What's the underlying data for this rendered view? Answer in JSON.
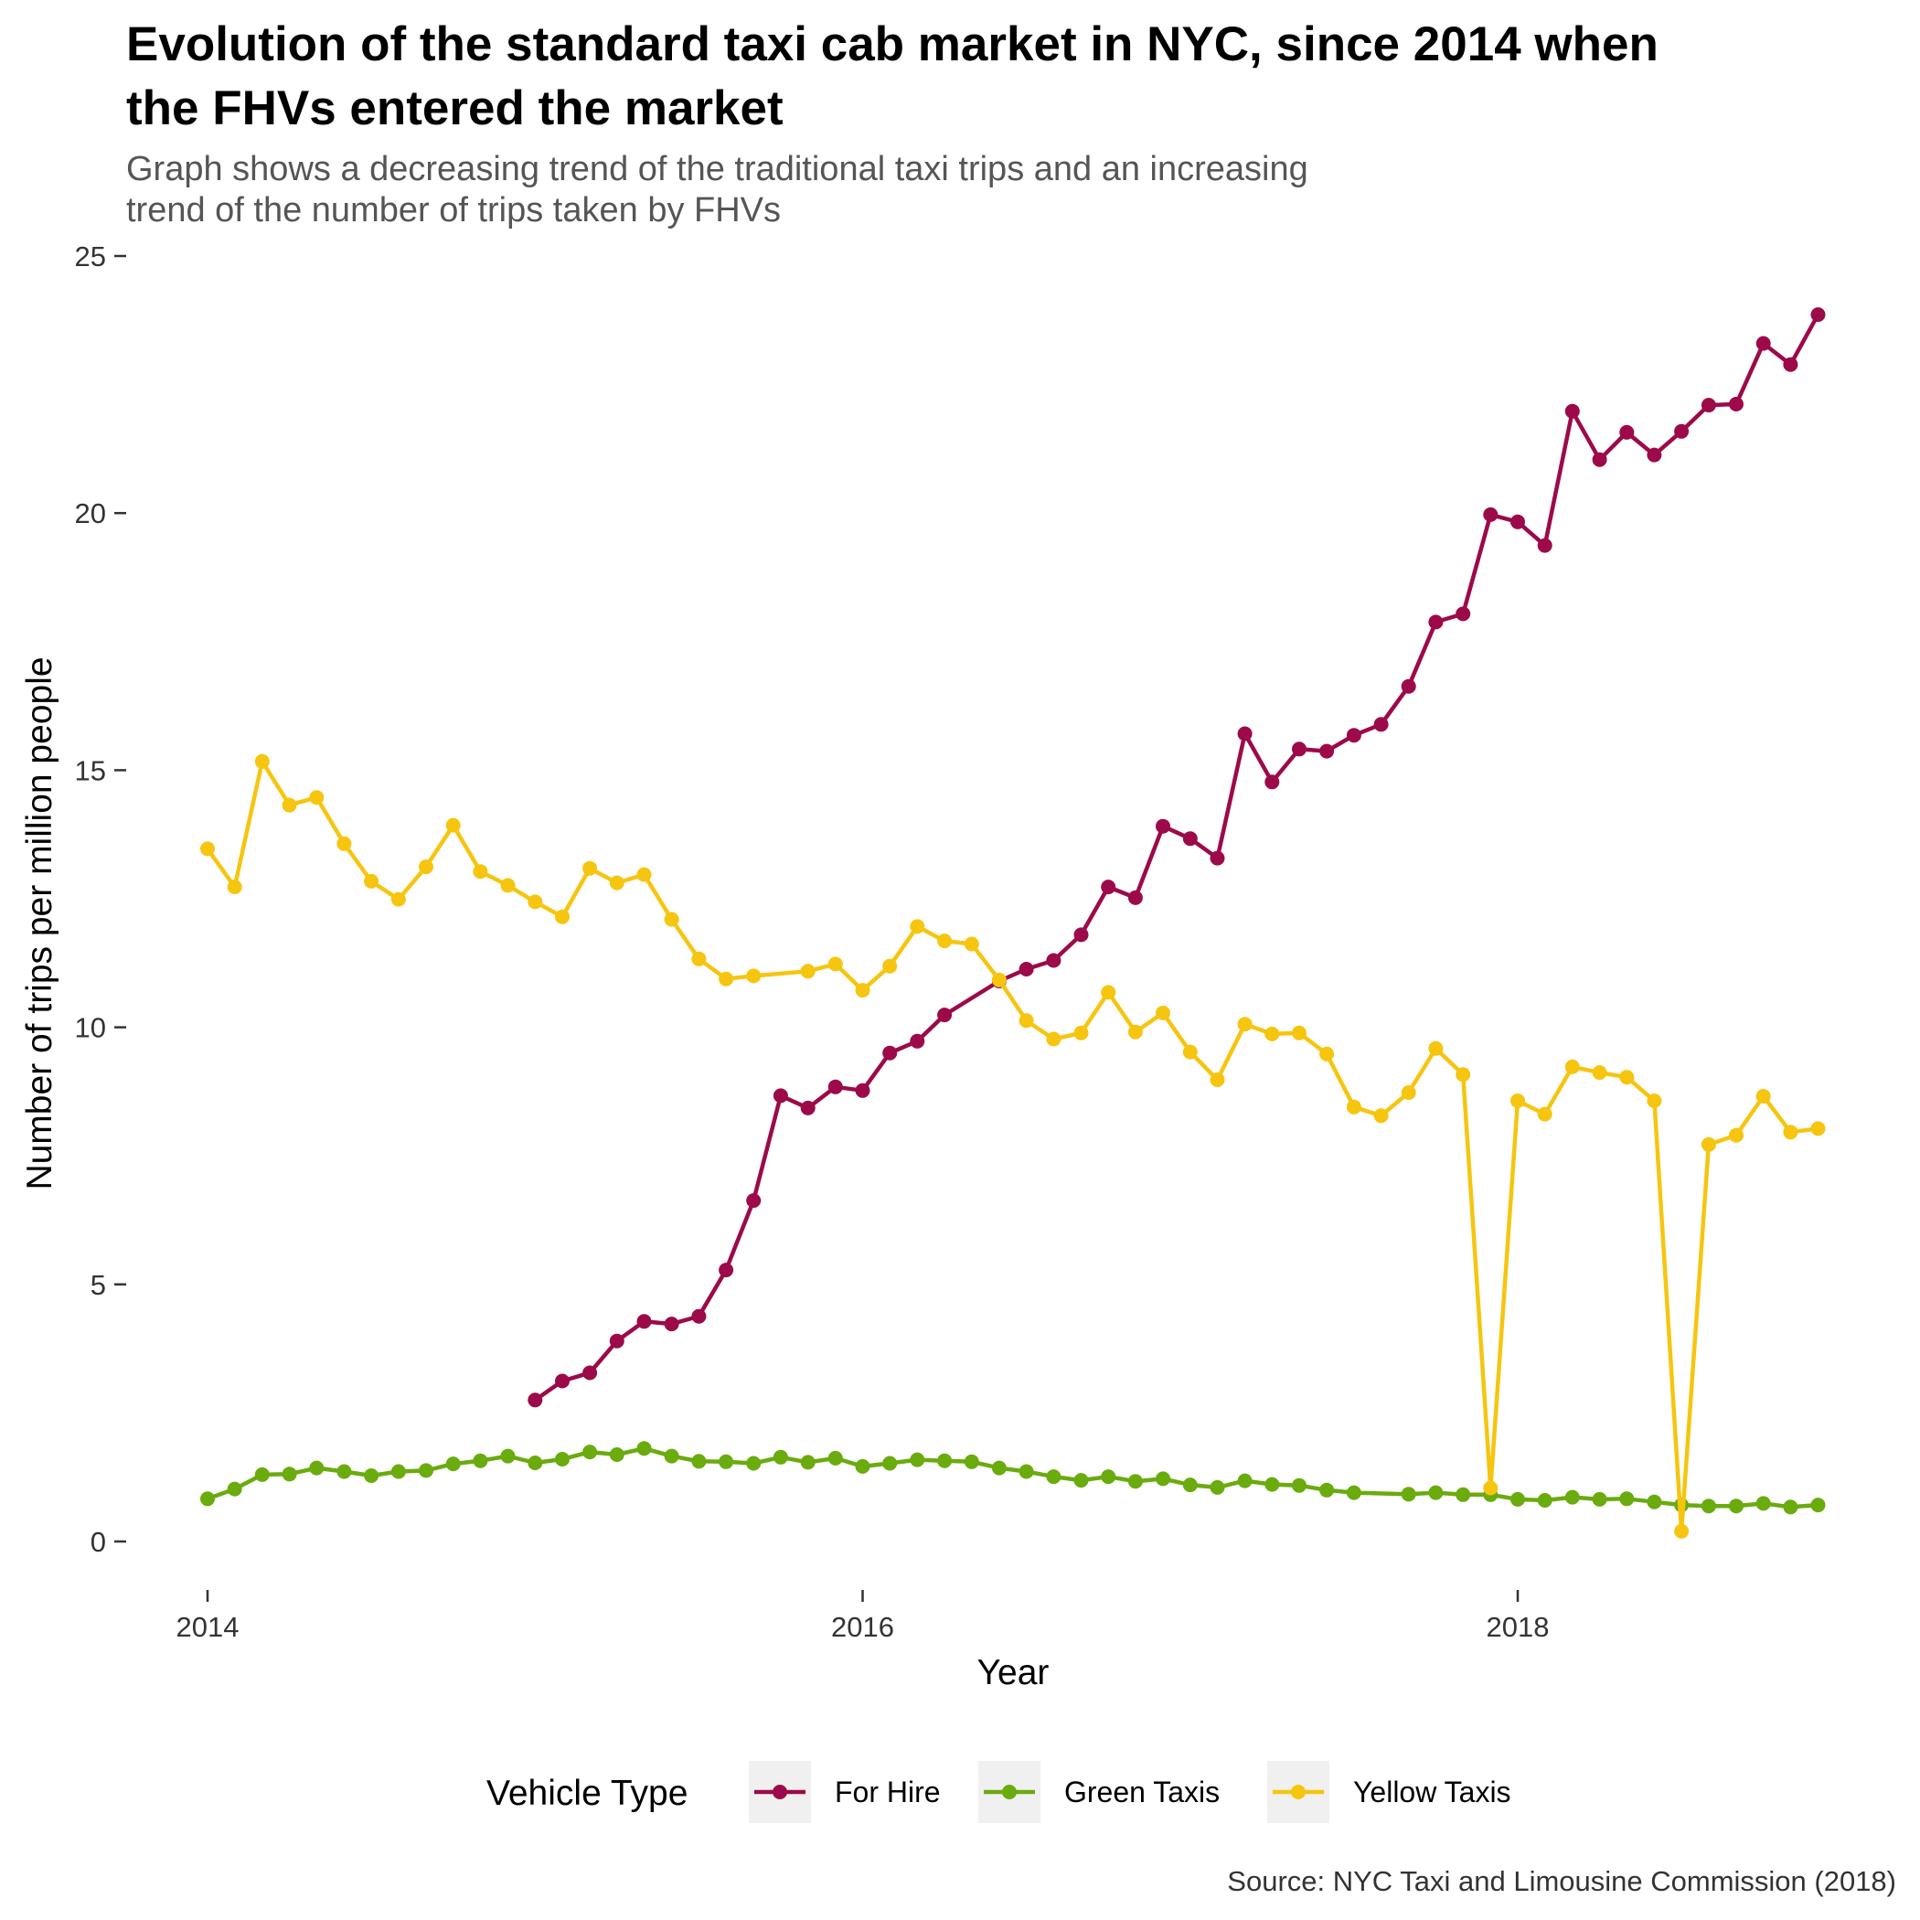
{
  "chart_data": {
    "type": "line",
    "title": "Evolution of the standard taxi cab market in NYC, since 2014 when the FHVs entered the market",
    "subtitle": "Graph shows a decreasing trend of the traditional taxi trips and an increasing trend of the number of trips taken by FHVs",
    "xlabel": "Year",
    "ylabel": "Number of trips per million people",
    "caption": "Source: NYC Taxi and Limousine Commission (2018)",
    "xlim": [
      2013.92,
      2019.08
    ],
    "ylim": [
      -0.8,
      25
    ],
    "x_ticks": [
      2014,
      2016,
      2018
    ],
    "y_ticks": [
      0,
      5,
      10,
      15,
      20,
      25
    ],
    "grid": false,
    "legend": {
      "title": "Vehicle Type",
      "position": "bottom"
    },
    "series": [
      {
        "name": "For Hire",
        "color": "#9C0A4A",
        "points": [
          [
            2015.0,
            2.75
          ],
          [
            2015.083,
            3.12
          ],
          [
            2015.167,
            3.28
          ],
          [
            2015.25,
            3.9
          ],
          [
            2015.333,
            4.28
          ],
          [
            2015.417,
            4.23
          ],
          [
            2015.5,
            4.38
          ],
          [
            2015.583,
            5.28
          ],
          [
            2015.667,
            6.63
          ],
          [
            2015.75,
            8.67
          ],
          [
            2015.833,
            8.43
          ],
          [
            2015.917,
            8.84
          ],
          [
            2016.0,
            8.77
          ],
          [
            2016.083,
            9.5
          ],
          [
            2016.167,
            9.73
          ],
          [
            2016.25,
            10.24
          ],
          [
            2016.417,
            10.9
          ],
          [
            2016.5,
            11.13
          ],
          [
            2016.583,
            11.3
          ],
          [
            2016.667,
            11.8
          ],
          [
            2016.75,
            12.73
          ],
          [
            2016.833,
            12.52
          ],
          [
            2016.917,
            13.91
          ],
          [
            2017.0,
            13.67
          ],
          [
            2017.083,
            13.29
          ],
          [
            2017.167,
            15.71
          ],
          [
            2017.25,
            14.77
          ],
          [
            2017.333,
            15.41
          ],
          [
            2017.417,
            15.37
          ],
          [
            2017.5,
            15.68
          ],
          [
            2017.583,
            15.89
          ],
          [
            2017.667,
            16.63
          ],
          [
            2017.75,
            17.88
          ],
          [
            2017.833,
            18.04
          ],
          [
            2017.917,
            19.97
          ],
          [
            2018.0,
            19.83
          ],
          [
            2018.083,
            19.37
          ],
          [
            2018.167,
            21.98
          ],
          [
            2018.25,
            21.04
          ],
          [
            2018.333,
            21.57
          ],
          [
            2018.417,
            21.13
          ],
          [
            2018.5,
            21.59
          ],
          [
            2018.583,
            22.1
          ],
          [
            2018.667,
            22.12
          ],
          [
            2018.75,
            23.3
          ],
          [
            2018.833,
            22.89
          ],
          [
            2018.917,
            23.86
          ]
        ]
      },
      {
        "name": "Green Taxis",
        "color": "#6AAB0E",
        "points": [
          [
            2014.0,
            0.83
          ],
          [
            2014.083,
            1.02
          ],
          [
            2014.167,
            1.3
          ],
          [
            2014.25,
            1.31
          ],
          [
            2014.333,
            1.43
          ],
          [
            2014.417,
            1.36
          ],
          [
            2014.5,
            1.28
          ],
          [
            2014.583,
            1.36
          ],
          [
            2014.667,
            1.38
          ],
          [
            2014.75,
            1.51
          ],
          [
            2014.833,
            1.57
          ],
          [
            2014.917,
            1.66
          ],
          [
            2015.0,
            1.53
          ],
          [
            2015.083,
            1.6
          ],
          [
            2015.167,
            1.74
          ],
          [
            2015.25,
            1.69
          ],
          [
            2015.333,
            1.81
          ],
          [
            2015.417,
            1.66
          ],
          [
            2015.5,
            1.56
          ],
          [
            2015.583,
            1.55
          ],
          [
            2015.667,
            1.52
          ],
          [
            2015.75,
            1.64
          ],
          [
            2015.833,
            1.54
          ],
          [
            2015.917,
            1.62
          ],
          [
            2016.0,
            1.46
          ],
          [
            2016.083,
            1.52
          ],
          [
            2016.167,
            1.59
          ],
          [
            2016.25,
            1.57
          ],
          [
            2016.333,
            1.55
          ],
          [
            2016.417,
            1.43
          ],
          [
            2016.5,
            1.36
          ],
          [
            2016.583,
            1.26
          ],
          [
            2016.667,
            1.19
          ],
          [
            2016.75,
            1.26
          ],
          [
            2016.833,
            1.17
          ],
          [
            2016.917,
            1.22
          ],
          [
            2017.0,
            1.1
          ],
          [
            2017.083,
            1.05
          ],
          [
            2017.167,
            1.18
          ],
          [
            2017.25,
            1.11
          ],
          [
            2017.333,
            1.09
          ],
          [
            2017.417,
            1.0
          ],
          [
            2017.5,
            0.95
          ],
          [
            2017.667,
            0.92
          ],
          [
            2017.75,
            0.95
          ],
          [
            2017.833,
            0.91
          ],
          [
            2017.917,
            0.91
          ],
          [
            2018.0,
            0.82
          ],
          [
            2018.083,
            0.8
          ],
          [
            2018.167,
            0.86
          ],
          [
            2018.25,
            0.82
          ],
          [
            2018.333,
            0.83
          ],
          [
            2018.417,
            0.77
          ],
          [
            2018.5,
            0.71
          ],
          [
            2018.583,
            0.69
          ],
          [
            2018.667,
            0.69
          ],
          [
            2018.75,
            0.74
          ],
          [
            2018.833,
            0.67
          ],
          [
            2018.917,
            0.71
          ]
        ]
      },
      {
        "name": "Yellow Taxis",
        "color": "#F6C510",
        "points": [
          [
            2014.0,
            13.47
          ],
          [
            2014.083,
            12.73
          ],
          [
            2014.167,
            15.17
          ],
          [
            2014.25,
            14.32
          ],
          [
            2014.333,
            14.47
          ],
          [
            2014.417,
            13.57
          ],
          [
            2014.5,
            12.84
          ],
          [
            2014.583,
            12.49
          ],
          [
            2014.667,
            13.12
          ],
          [
            2014.75,
            13.93
          ],
          [
            2014.833,
            13.03
          ],
          [
            2014.917,
            12.76
          ],
          [
            2015.0,
            12.44
          ],
          [
            2015.083,
            12.15
          ],
          [
            2015.167,
            13.09
          ],
          [
            2015.25,
            12.81
          ],
          [
            2015.333,
            12.97
          ],
          [
            2015.417,
            12.1
          ],
          [
            2015.5,
            11.33
          ],
          [
            2015.583,
            10.94
          ],
          [
            2015.667,
            11.0
          ],
          [
            2015.833,
            11.09
          ],
          [
            2015.917,
            11.23
          ],
          [
            2016.0,
            10.72
          ],
          [
            2016.083,
            11.19
          ],
          [
            2016.167,
            11.96
          ],
          [
            2016.25,
            11.68
          ],
          [
            2016.333,
            11.62
          ],
          [
            2016.417,
            10.92
          ],
          [
            2016.5,
            10.13
          ],
          [
            2016.583,
            9.77
          ],
          [
            2016.667,
            9.89
          ],
          [
            2016.75,
            10.68
          ],
          [
            2016.833,
            9.91
          ],
          [
            2016.917,
            10.28
          ],
          [
            2017.0,
            9.52
          ],
          [
            2017.083,
            8.98
          ],
          [
            2017.167,
            10.06
          ],
          [
            2017.25,
            9.87
          ],
          [
            2017.333,
            9.89
          ],
          [
            2017.417,
            9.48
          ],
          [
            2017.5,
            8.45
          ],
          [
            2017.583,
            8.28
          ],
          [
            2017.667,
            8.73
          ],
          [
            2017.75,
            9.59
          ],
          [
            2017.833,
            9.08
          ],
          [
            2017.917,
            1.04
          ],
          [
            2018.0,
            8.57
          ],
          [
            2018.083,
            8.31
          ],
          [
            2018.167,
            9.23
          ],
          [
            2018.25,
            9.12
          ],
          [
            2018.333,
            9.03
          ],
          [
            2018.417,
            8.57
          ],
          [
            2018.5,
            0.2
          ],
          [
            2018.583,
            7.72
          ],
          [
            2018.667,
            7.9
          ],
          [
            2018.75,
            8.66
          ],
          [
            2018.833,
            7.96
          ],
          [
            2018.917,
            8.03
          ]
        ]
      }
    ]
  }
}
